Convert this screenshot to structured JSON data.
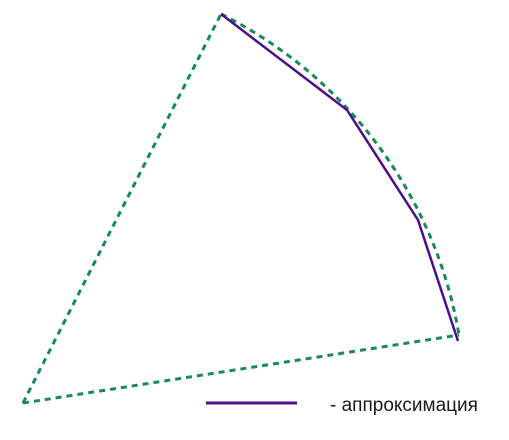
{
  "colors": {
    "sector": "#168a5e",
    "approximation": "#4b0f8c"
  },
  "legend": {
    "label": "- аппроксимация"
  }
}
